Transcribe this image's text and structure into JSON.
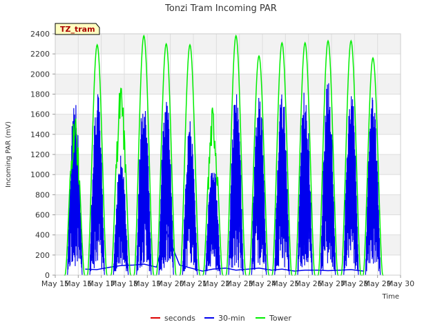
{
  "chart_data": {
    "type": "line",
    "title": "Tonzi Tram Incoming PAR",
    "xlabel": "Time",
    "ylabel": "Incoming PAR (mV)",
    "site_badge": "TZ_tram",
    "xlim": [
      15,
      30
    ],
    "ylim": [
      0,
      2400
    ],
    "x_ticks": [
      15,
      16,
      17,
      18,
      19,
      20,
      21,
      22,
      23,
      24,
      25,
      26,
      27,
      28,
      29,
      30
    ],
    "x_tick_labels": [
      "May 15",
      "May 16",
      "May 17",
      "May 18",
      "May 19",
      "May 20",
      "May 21",
      "May 22",
      "May 23",
      "May 24",
      "May 25",
      "May 26",
      "May 27",
      "May 28",
      "May 29",
      "May 30"
    ],
    "y_ticks": [
      0,
      200,
      400,
      600,
      800,
      1000,
      1200,
      1400,
      1600,
      1800,
      2000,
      2200,
      2400
    ],
    "y_tick_labels": [
      "0",
      "200",
      "400",
      "600",
      "800",
      "1000",
      "1200",
      "1400",
      "1600",
      "1800",
      "2000",
      "2200",
      "2400"
    ],
    "grid": true,
    "legend_position": "bottom",
    "series": [
      {
        "name": "seconds",
        "color": "#dd0000",
        "x": [],
        "y": []
      },
      {
        "name": "30-min",
        "color": "#0000ee",
        "day_centers": [
          15.85,
          16.82,
          17.85,
          18.85,
          19.82,
          20.85,
          21.85,
          22.85,
          23.85,
          24.85,
          25.85,
          26.85,
          27.85,
          28.8
        ],
        "day_peaks": [
          1750,
          1860,
          1200,
          1860,
          1860,
          1540,
          1150,
          1850,
          1850,
          1910,
          1920,
          1970,
          1920,
          1840
        ],
        "baseline_x": [
          16.3,
          16.8,
          17.4,
          17.85,
          18.4,
          18.85,
          19.4,
          19.82,
          20.4,
          21.4,
          21.85,
          22.4,
          22.85,
          23.4,
          23.85,
          24.4,
          24.85,
          25.4,
          25.85,
          26.4,
          26.85,
          27.4,
          27.85,
          28.4
        ],
        "baseline_y": [
          60,
          55,
          80,
          95,
          100,
          110,
          80,
          440,
          100,
          40,
          60,
          70,
          50,
          60,
          70,
          50,
          60,
          40,
          50,
          50,
          45,
          50,
          55,
          40
        ]
      },
      {
        "name": "Tower",
        "color": "#00ee00",
        "day_centers": [
          15.85,
          16.82,
          17.85,
          18.85,
          19.82,
          20.85,
          21.85,
          22.85,
          23.85,
          24.85,
          25.85,
          26.85,
          27.85,
          28.8
        ],
        "day_peaks": [
          1640,
          2290,
          1920,
          2380,
          2300,
          2290,
          1700,
          2380,
          2180,
          2310,
          2310,
          2330,
          2330,
          2160
        ]
      }
    ]
  }
}
